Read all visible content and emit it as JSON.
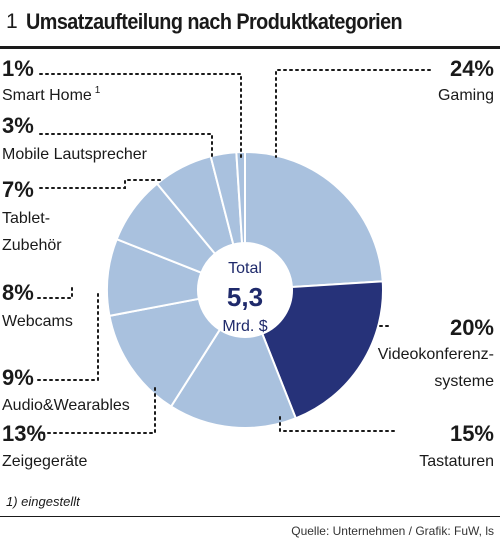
{
  "header": {
    "number": "1",
    "title": "Umsatzaufteilung nach Produktkategorien"
  },
  "footnote": "1) eingestellt",
  "source": "Quelle: Unternehmen / Grafik: FuW, ls",
  "colors": {
    "light": "#a9c1de",
    "dark": "#263279",
    "text": "#1a1a1a",
    "center_text": "#1f2a6b"
  },
  "chart_data": {
    "type": "pie",
    "donut": true,
    "center": {
      "line1": "Total",
      "line2": "5,3",
      "line3": "Mrd. $"
    },
    "series": [
      {
        "name": "Gaming",
        "pct_label": "24%",
        "value": 24,
        "color": "#a9c1de"
      },
      {
        "name": "Videokonferenz-systeme",
        "pct_label": "20%",
        "value": 20,
        "color": "#263279"
      },
      {
        "name": "Tastaturen",
        "pct_label": "15%",
        "value": 15,
        "color": "#a9c1de"
      },
      {
        "name": "Zeigegeräte",
        "pct_label": "13%",
        "value": 13,
        "color": "#a9c1de"
      },
      {
        "name": "Audio&Wearables",
        "pct_label": "9%",
        "value": 9,
        "color": "#a9c1de"
      },
      {
        "name": "Webcams",
        "pct_label": "8%",
        "value": 8,
        "color": "#a9c1de"
      },
      {
        "name": "Tablet-Zubehör",
        "pct_label": "7%",
        "value": 7,
        "color": "#a9c1de"
      },
      {
        "name": "Mobile Lautsprecher",
        "pct_label": "3%",
        "value": 3,
        "color": "#a9c1de"
      },
      {
        "name": "Smart Home",
        "footnote_mark": "1",
        "pct_label": "1%",
        "value": 1,
        "color": "#a9c1de"
      }
    ]
  }
}
